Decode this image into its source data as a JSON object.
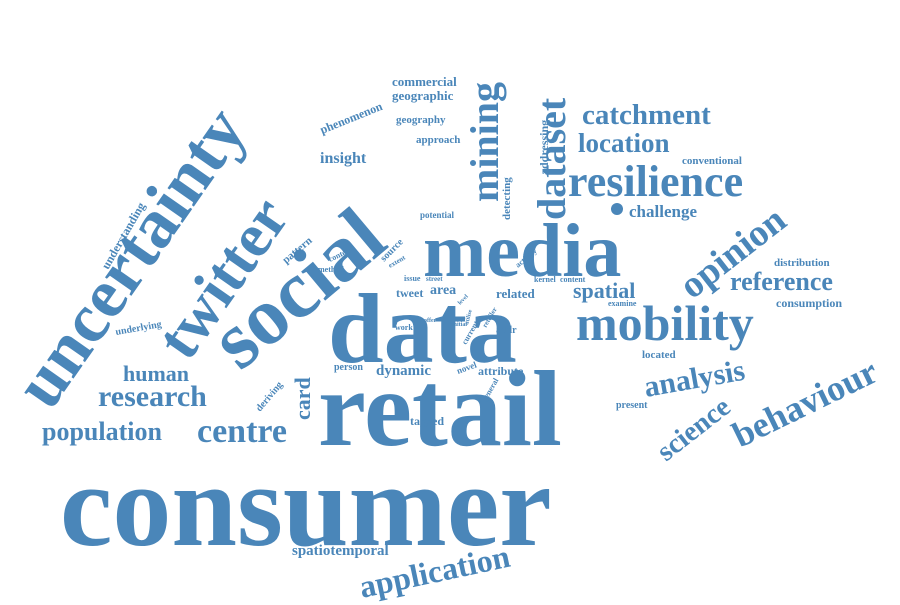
{
  "word_cloud": {
    "color": "#4a86b9",
    "words": {
      "consumer": "consumer",
      "retail": "retail",
      "data": "data",
      "media": "media",
      "social": "social",
      "uncertainty": "uncertainty",
      "twitter": "twitter",
      "mobility": "mobility",
      "resilience": "resilience",
      "catchment": "catchment",
      "location": "location",
      "dataset": "dataset",
      "mining": "mining",
      "opinion": "opinion",
      "reference": "reference",
      "analysis": "analysis",
      "behaviour": "behaviour",
      "science": "science",
      "application": "application",
      "centre": "centre",
      "population": "population",
      "research": "research",
      "human": "human",
      "card": "card",
      "spatial": "spatial",
      "insight": "insight",
      "challenge": "challenge",
      "commercial": "commercial",
      "geographic": "geographic",
      "geography": "geography",
      "phenomenon": "phenomenon",
      "approach": "approach",
      "addressing": "addressing",
      "detecting": "detecting",
      "conventional": "conventional",
      "understanding": "understanding",
      "pattern": "pattern",
      "potential": "potential",
      "context": "context",
      "method": "method",
      "extent": "extent",
      "source": "source",
      "issue": "issue",
      "street": "street",
      "area": "area",
      "tweet": "tweet",
      "related": "related",
      "activity": "activity",
      "kernel": "kernel",
      "content": "content",
      "distribution": "distribution",
      "consumption": "consumption",
      "examine": "examine",
      "addr": "addr",
      "work": "work",
      "offer": "offer",
      "current": "current",
      "initial": "initial",
      "level": "level",
      "utilise": "utilise",
      "retailer": "retailer",
      "underlying": "underlying",
      "deriving": "deriving",
      "person": "person",
      "dynamic": "dynamic",
      "novel": "novel",
      "attribute": "attribute",
      "general": "general",
      "located": "located",
      "present": "present",
      "tagged": "tagged",
      "spatiotemporal": "spatiotemporal"
    }
  }
}
